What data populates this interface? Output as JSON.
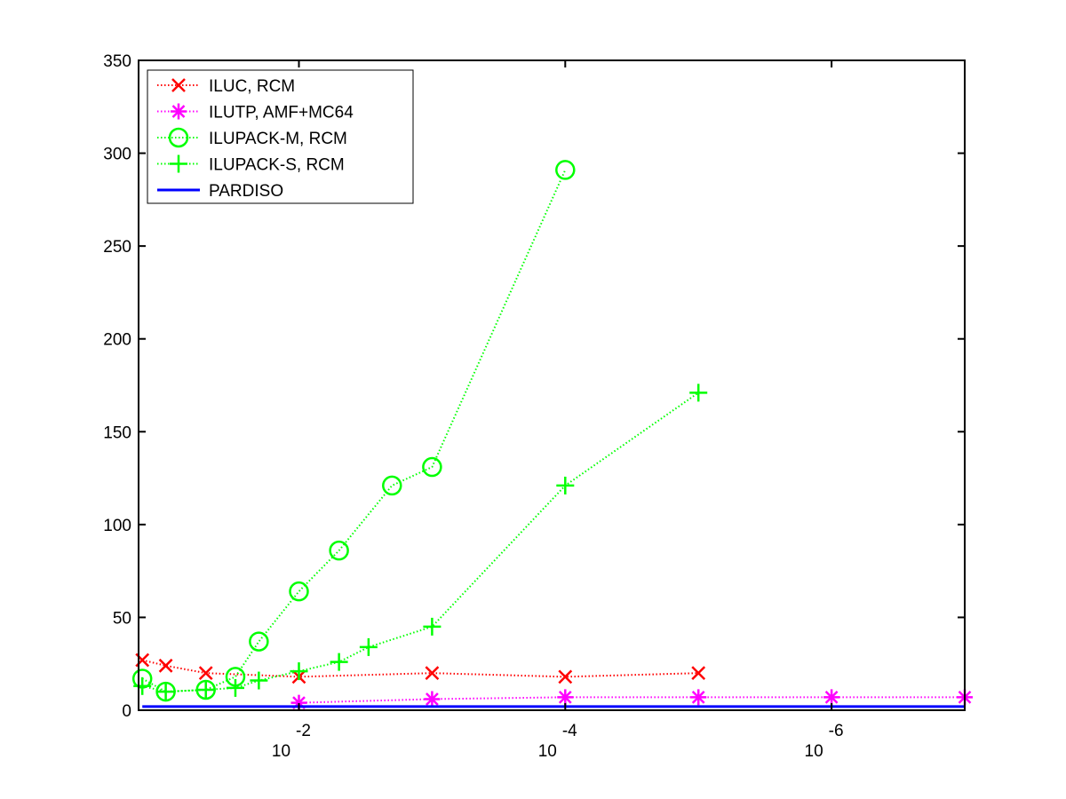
{
  "chart_data": {
    "type": "line",
    "title": "",
    "xlabel": "",
    "ylabel": "",
    "x_scale": "log",
    "x_reversed": true,
    "xlim": [
      0.16,
      1e-07
    ],
    "ylim": [
      0,
      350
    ],
    "grid": false,
    "legend_position": "top-left",
    "x_ticks": [
      {
        "value": 0.01,
        "base": "10",
        "exponent": "-2"
      },
      {
        "value": 0.0001,
        "base": "10",
        "exponent": "-4"
      },
      {
        "value": 1e-06,
        "base": "10",
        "exponent": "-6"
      }
    ],
    "y_ticks": [
      "0",
      "50",
      "100",
      "150",
      "200",
      "250",
      "300",
      "350"
    ],
    "series": [
      {
        "name": "ILUC, RCM",
        "color": "#ff0000",
        "marker": "x",
        "line_style": "dotted",
        "x": [
          0.15,
          0.1,
          0.05,
          0.01,
          0.001,
          0.0001,
          1e-05
        ],
        "y": [
          27,
          24,
          20,
          18,
          20,
          18,
          20
        ]
      },
      {
        "name": "ILUTP, AMF+MC64",
        "color": "#ff00ff",
        "marker": "asterisk",
        "line_style": "dotted",
        "x": [
          0.01,
          0.001,
          0.0001,
          1e-05,
          1e-06,
          1e-07
        ],
        "y": [
          4,
          6,
          7,
          7,
          7,
          7
        ]
      },
      {
        "name": "ILUPACK-M, RCM",
        "color": "#00ff00",
        "marker": "circle",
        "line_style": "dotted",
        "x": [
          0.15,
          0.1,
          0.05,
          0.03,
          0.02,
          0.01,
          0.005,
          0.002,
          0.001,
          0.0001
        ],
        "y": [
          17,
          10,
          11,
          18,
          37,
          64,
          86,
          121,
          131,
          291
        ]
      },
      {
        "name": "ILUPACK-S, RCM",
        "color": "#00ff00",
        "marker": "plus",
        "line_style": "dotted",
        "x": [
          0.15,
          0.1,
          0.05,
          0.03,
          0.02,
          0.01,
          0.005,
          0.003,
          0.001,
          0.0001,
          1e-05
        ],
        "y": [
          13,
          10,
          11,
          12,
          16,
          21,
          26,
          34,
          45,
          121,
          171
        ]
      },
      {
        "name": "PARDISO",
        "color": "#0000ff",
        "marker": "none",
        "line_style": "solid",
        "x": [
          0.15,
          1e-07
        ],
        "y": [
          2,
          2
        ]
      }
    ]
  }
}
